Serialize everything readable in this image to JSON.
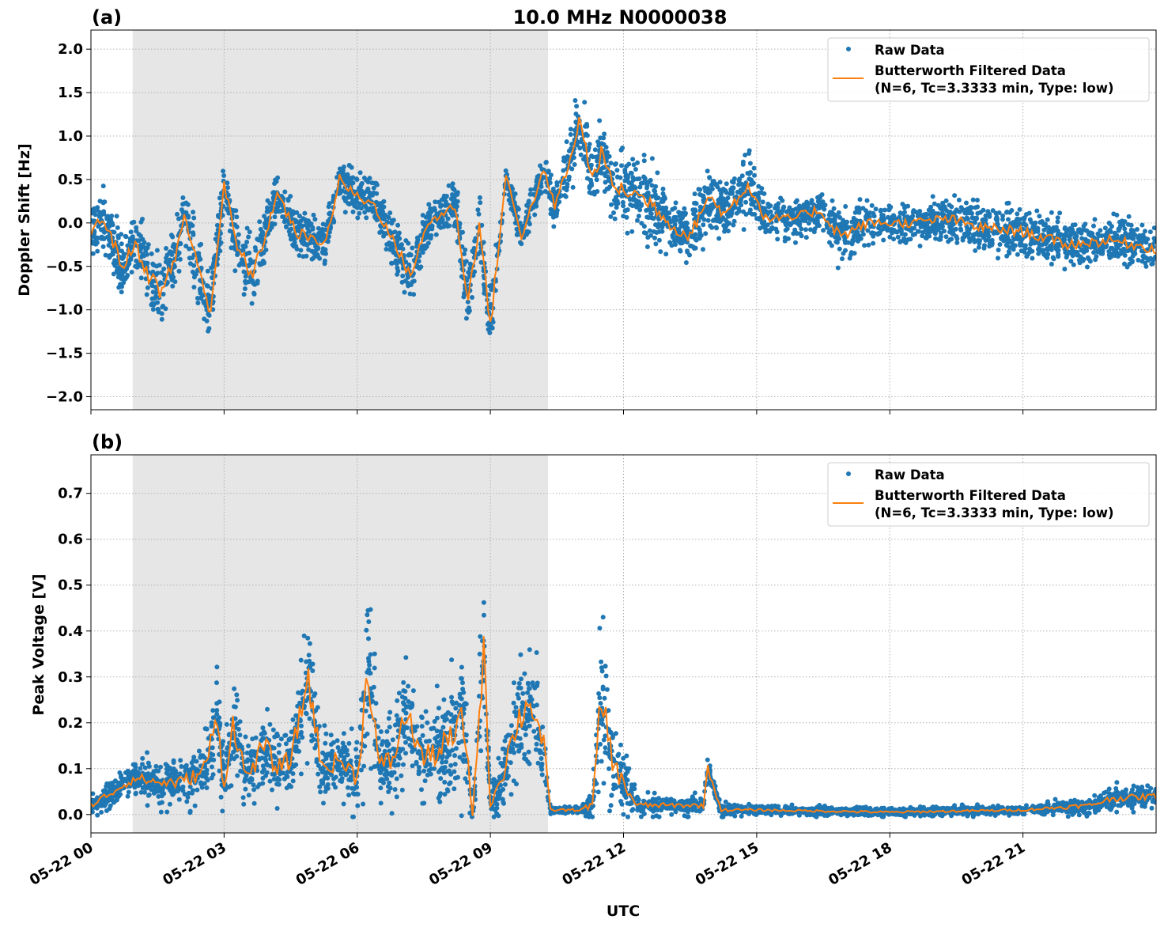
{
  "figure_title": "10.0 MHz N0000038",
  "colors": {
    "raw": "#1f77b4",
    "filtered": "#ff7f0e",
    "shade": "#e6e6e6",
    "grid": "#b0b0b0"
  },
  "chart_data": [
    {
      "type": "scatter",
      "panel_label": "(a)",
      "title": "10.0 MHz N0000038",
      "xlabel": "",
      "ylabel": "Doppler Shift [Hz]",
      "x_unit": "hours UTC on 05-22",
      "xlim": [
        0,
        24
      ],
      "ylim": [
        -2.15,
        2.22
      ],
      "grid": true,
      "legend_placement": "top-right",
      "shaded_region_hours": [
        0.94,
        10.3
      ],
      "xticks": [
        {
          "h": 0,
          "label": "05-22 00"
        },
        {
          "h": 3,
          "label": "05-22 03"
        },
        {
          "h": 6,
          "label": "05-22 06"
        },
        {
          "h": 9,
          "label": "05-22 09"
        },
        {
          "h": 12,
          "label": "05-22 12"
        },
        {
          "h": 15,
          "label": "05-22 15"
        },
        {
          "h": 18,
          "label": "05-22 18"
        },
        {
          "h": 21,
          "label": "05-22 21"
        }
      ],
      "yticks": [
        {
          "v": 2.0,
          "label": "2.0"
        },
        {
          "v": 1.5,
          "label": "1.5"
        },
        {
          "v": 1.0,
          "label": "1.0"
        },
        {
          "v": 0.5,
          "label": "0.5"
        },
        {
          "v": 0.0,
          "label": "0.0"
        },
        {
          "v": -0.5,
          "label": "−0.5"
        },
        {
          "v": -1.0,
          "label": "−1.0"
        },
        {
          "v": -1.5,
          "label": "−1.5"
        },
        {
          "v": -2.0,
          "label": "−2.0"
        }
      ],
      "legend": {
        "raw": "Raw Data",
        "filtered_line1": "Butterworth Filtered Data",
        "filtered_line2": "(N=6, Tc=3.3333 min, Type: low)"
      },
      "series_columns": [
        "hour",
        "filtered_value",
        "raw_spread"
      ],
      "series": [
        [
          0,
          -0.1,
          0.45
        ],
        [
          0.3,
          0.05,
          0.4
        ],
        [
          0.7,
          -0.5,
          0.5
        ],
        [
          1.0,
          -0.25,
          0.4
        ],
        [
          1.3,
          -0.6,
          0.6
        ],
        [
          1.6,
          -0.8,
          0.6
        ],
        [
          1.9,
          -0.4,
          0.5
        ],
        [
          2.1,
          0.1,
          0.4
        ],
        [
          2.4,
          -0.5,
          0.5
        ],
        [
          2.7,
          -1.0,
          0.6
        ],
        [
          3.0,
          0.45,
          0.35
        ],
        [
          3.3,
          -0.3,
          0.5
        ],
        [
          3.65,
          -0.6,
          0.6
        ],
        [
          3.9,
          -0.2,
          0.4
        ],
        [
          4.2,
          0.35,
          0.3
        ],
        [
          4.6,
          -0.1,
          0.4
        ],
        [
          5.0,
          -0.2,
          0.4
        ],
        [
          5.3,
          -0.2,
          0.3
        ],
        [
          5.6,
          0.5,
          0.35
        ],
        [
          6.0,
          0.3,
          0.35
        ],
        [
          6.4,
          0.2,
          0.35
        ],
        [
          6.7,
          -0.1,
          0.35
        ],
        [
          7.2,
          -0.6,
          0.45
        ],
        [
          7.6,
          0.0,
          0.3
        ],
        [
          8.2,
          0.2,
          0.35
        ],
        [
          8.5,
          -0.9,
          0.6
        ],
        [
          8.75,
          0.0,
          0.4
        ],
        [
          9.0,
          -1.2,
          0.6
        ],
        [
          9.35,
          0.55,
          0.2
        ],
        [
          9.7,
          -0.15,
          0.3
        ],
        [
          10.2,
          0.6,
          0.25
        ],
        [
          10.45,
          0.2,
          0.35
        ],
        [
          10.8,
          0.7,
          0.5
        ],
        [
          11.0,
          1.2,
          0.5
        ],
        [
          11.3,
          0.5,
          0.5
        ],
        [
          11.5,
          0.8,
          0.5
        ],
        [
          11.8,
          0.4,
          0.5
        ],
        [
          12.2,
          0.35,
          0.55
        ],
        [
          12.7,
          0.2,
          0.55
        ],
        [
          13.1,
          -0.05,
          0.35
        ],
        [
          13.5,
          -0.15,
          0.4
        ],
        [
          13.9,
          0.3,
          0.5
        ],
        [
          14.3,
          0.1,
          0.4
        ],
        [
          14.8,
          0.45,
          0.5
        ],
        [
          15.2,
          0.05,
          0.3
        ],
        [
          15.8,
          0.05,
          0.3
        ],
        [
          16.4,
          0.15,
          0.35
        ],
        [
          16.9,
          -0.15,
          0.4
        ],
        [
          17.5,
          0.0,
          0.3
        ],
        [
          18.5,
          0.0,
          0.3
        ],
        [
          19.3,
          0.05,
          0.35
        ],
        [
          20.0,
          -0.05,
          0.35
        ],
        [
          21.0,
          -0.1,
          0.35
        ],
        [
          22.0,
          -0.25,
          0.35
        ],
        [
          23.0,
          -0.2,
          0.35
        ],
        [
          24.0,
          -0.3,
          0.35
        ]
      ]
    },
    {
      "type": "scatter",
      "panel_label": "(b)",
      "title": "",
      "xlabel": "UTC",
      "ylabel": "Peak Voltage [V]",
      "x_unit": "hours UTC on 05-22",
      "xlim": [
        0,
        24
      ],
      "ylim": [
        -0.04,
        0.784
      ],
      "grid": true,
      "legend_placement": "top-right",
      "shaded_region_hours": [
        0.94,
        10.3
      ],
      "xticks": [
        {
          "h": 0,
          "label": "05-22 00"
        },
        {
          "h": 3,
          "label": "05-22 03"
        },
        {
          "h": 6,
          "label": "05-22 06"
        },
        {
          "h": 9,
          "label": "05-22 09"
        },
        {
          "h": 12,
          "label": "05-22 12"
        },
        {
          "h": 15,
          "label": "05-22 15"
        },
        {
          "h": 18,
          "label": "05-22 18"
        },
        {
          "h": 21,
          "label": "05-22 21"
        }
      ],
      "yticks": [
        {
          "v": 0.7,
          "label": "0.7"
        },
        {
          "v": 0.6,
          "label": "0.6"
        },
        {
          "v": 0.5,
          "label": "0.5"
        },
        {
          "v": 0.4,
          "label": "0.4"
        },
        {
          "v": 0.3,
          "label": "0.3"
        },
        {
          "v": 0.2,
          "label": "0.2"
        },
        {
          "v": 0.1,
          "label": "0.1"
        },
        {
          "v": 0.0,
          "label": "0.0"
        }
      ],
      "legend": {
        "raw": "Raw Data",
        "filtered_line1": "Butterworth Filtered Data",
        "filtered_line2": "(N=6, Tc=3.3333 min, Type: low)"
      },
      "series_columns": [
        "hour",
        "filtered_value",
        "raw_spread"
      ],
      "series": [
        [
          0,
          0.02,
          0.04
        ],
        [
          0.5,
          0.05,
          0.05
        ],
        [
          1.0,
          0.08,
          0.06
        ],
        [
          1.5,
          0.07,
          0.07
        ],
        [
          2.0,
          0.07,
          0.08
        ],
        [
          2.5,
          0.09,
          0.1
        ],
        [
          2.85,
          0.2,
          0.2
        ],
        [
          3.0,
          0.06,
          0.1
        ],
        [
          3.2,
          0.2,
          0.15
        ],
        [
          3.5,
          0.08,
          0.12
        ],
        [
          3.9,
          0.15,
          0.15
        ],
        [
          4.2,
          0.1,
          0.12
        ],
        [
          4.5,
          0.12,
          0.12
        ],
        [
          4.9,
          0.3,
          0.25
        ],
        [
          5.2,
          0.1,
          0.12
        ],
        [
          5.6,
          0.12,
          0.12
        ],
        [
          6.0,
          0.08,
          0.12
        ],
        [
          6.25,
          0.32,
          0.3
        ],
        [
          6.5,
          0.1,
          0.15
        ],
        [
          6.8,
          0.12,
          0.15
        ],
        [
          7.1,
          0.22,
          0.18
        ],
        [
          7.5,
          0.12,
          0.15
        ],
        [
          8.0,
          0.15,
          0.2
        ],
        [
          8.4,
          0.2,
          0.25
        ],
        [
          8.6,
          0.0,
          0.03
        ],
        [
          8.85,
          0.36,
          0.25
        ],
        [
          9.0,
          0.02,
          0.03
        ],
        [
          9.3,
          0.1,
          0.15
        ],
        [
          9.6,
          0.2,
          0.2
        ],
        [
          9.9,
          0.25,
          0.2
        ],
        [
          10.2,
          0.15,
          0.15
        ],
        [
          10.35,
          0.01,
          0.02
        ],
        [
          11.0,
          0.01,
          0.015
        ],
        [
          11.3,
          0.02,
          0.05
        ],
        [
          11.5,
          0.25,
          0.3
        ],
        [
          11.8,
          0.1,
          0.15
        ],
        [
          12.3,
          0.02,
          0.04
        ],
        [
          13.0,
          0.02,
          0.03
        ],
        [
          13.8,
          0.02,
          0.03
        ],
        [
          13.9,
          0.1,
          0.05
        ],
        [
          14.2,
          0.01,
          0.02
        ],
        [
          15.0,
          0.01,
          0.015
        ],
        [
          18.0,
          0.005,
          0.015
        ],
        [
          21.0,
          0.01,
          0.015
        ],
        [
          22.5,
          0.02,
          0.03
        ],
        [
          23.0,
          0.035,
          0.04
        ],
        [
          24.0,
          0.04,
          0.04
        ]
      ]
    }
  ]
}
